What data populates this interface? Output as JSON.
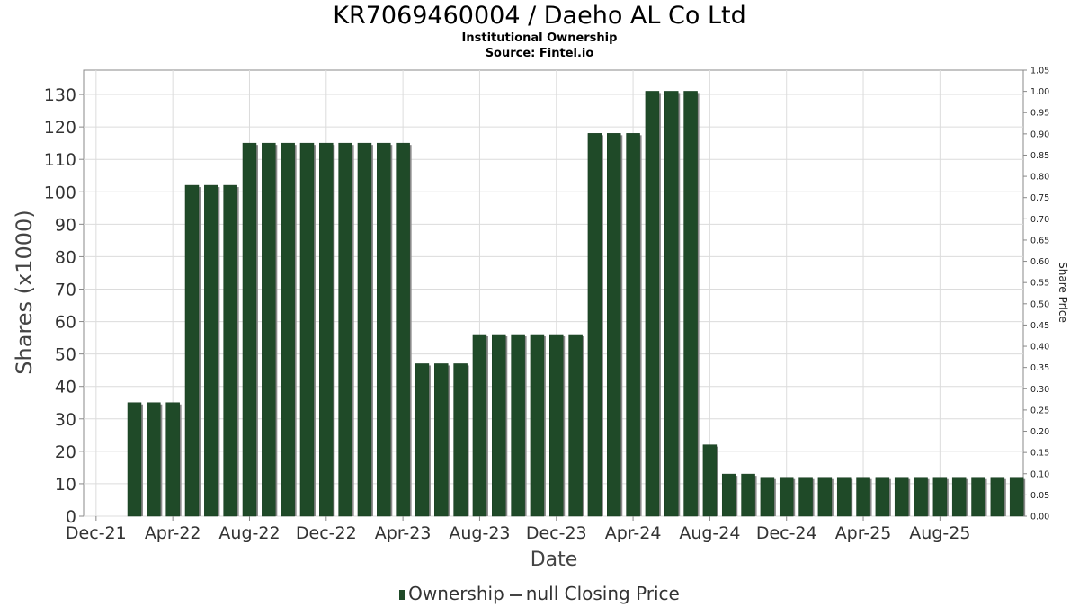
{
  "header": {
    "title": "KR7069460004 / Daeho AL Co Ltd",
    "subtitle": "Institutional Ownership",
    "source": "Source: Fintel.io"
  },
  "legend": {
    "ownership": "Ownership",
    "price": "null Closing Price"
  },
  "colors": {
    "bar": "#1f4a28",
    "bar_shadow": "#8a8a8a",
    "grid": "#dcdcdc",
    "axis": "#888888"
  },
  "chart_data": {
    "type": "bar",
    "xlabel": "Date",
    "ylabel": "Shares (x1000)",
    "y2label": "Share Price",
    "ylim": [
      0,
      137.5
    ],
    "y2lim": [
      0,
      1.05
    ],
    "yticks": [
      0,
      10,
      20,
      30,
      40,
      50,
      60,
      70,
      80,
      90,
      100,
      110,
      120,
      130
    ],
    "y2ticks": [
      "0.00",
      "0.05",
      "0.10",
      "0.15",
      "0.20",
      "0.25",
      "0.30",
      "0.35",
      "0.40",
      "0.45",
      "0.50",
      "0.55",
      "0.60",
      "0.65",
      "0.70",
      "0.75",
      "0.80",
      "0.85",
      "0.90",
      "0.95",
      "1.00",
      "1.05"
    ],
    "xtick_labels": [
      "Dec-21",
      "Apr-22",
      "Aug-22",
      "Dec-22",
      "Apr-23",
      "Aug-23",
      "Dec-23",
      "Apr-24",
      "Aug-24",
      "Dec-24",
      "Apr-25",
      "Aug-25"
    ],
    "grid": true,
    "legend_position": "bottom",
    "series": [
      {
        "name": "Ownership",
        "values": [
          35,
          35,
          35,
          102,
          102,
          102,
          115,
          115,
          115,
          115,
          115,
          115,
          115,
          115,
          115,
          47,
          47,
          47,
          56,
          56,
          56,
          56,
          56,
          56,
          118,
          118,
          118,
          131,
          131,
          131,
          22,
          13,
          13,
          12,
          12,
          12,
          12,
          12,
          12,
          12,
          12,
          12,
          12,
          12,
          12,
          12,
          12
        ]
      }
    ]
  }
}
